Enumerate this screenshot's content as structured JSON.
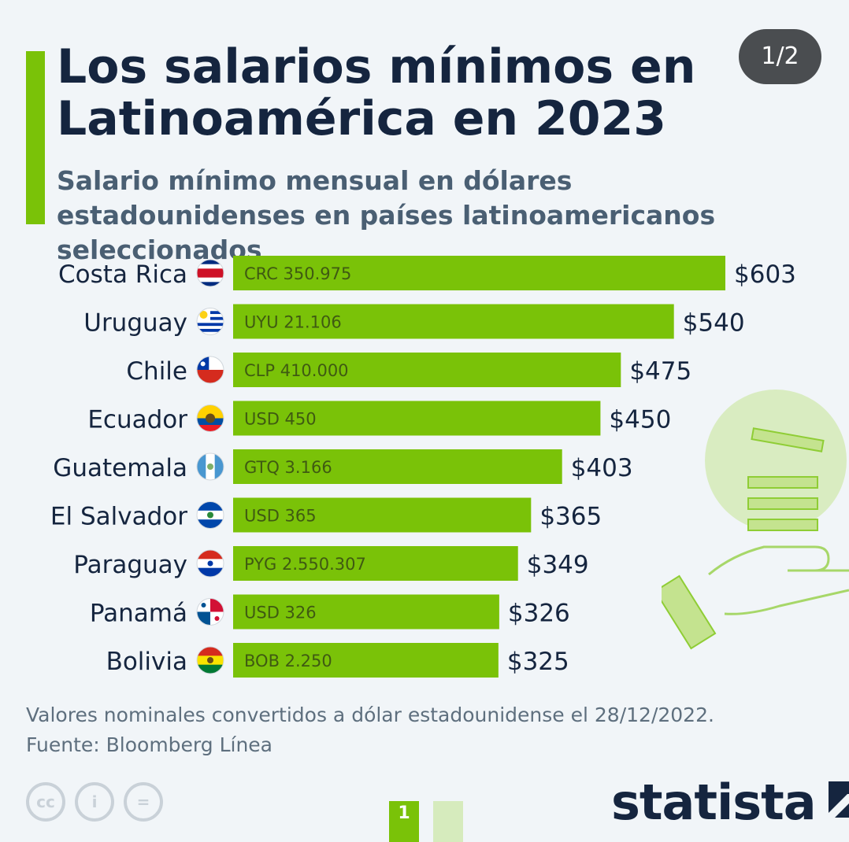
{
  "header": {
    "title": "Los salarios mínimos en Latinoamérica en 2023",
    "subtitle": "Salario mínimo mensual en dólares estadounidenses en países latinoamericanos seleccionados",
    "page_indicator": "1/2"
  },
  "colors": {
    "accent": "#7ac208",
    "text_dark": "#15253f",
    "text_muted": "#5e6f7e",
    "background": "#f1f5f8"
  },
  "chart_data": {
    "type": "bar",
    "orientation": "horizontal",
    "categories": [
      "Costa Rica",
      "Uruguay",
      "Chile",
      "Ecuador",
      "Guatemala",
      "El Salvador",
      "Paraguay",
      "Panamá",
      "Bolivia"
    ],
    "values": [
      603,
      540,
      475,
      450,
      403,
      365,
      349,
      326,
      325
    ],
    "value_labels": [
      "$603",
      "$540",
      "$475",
      "$450",
      "$403",
      "$365",
      "$349",
      "$326",
      "$325"
    ],
    "local_currency_labels": [
      "CRC 350.975",
      "UYU 21.106",
      "CLP 410.000",
      "USD 450",
      "GTQ 3.166",
      "USD 365",
      "PYG 2.550.307",
      "USD 326",
      "BOB 2.250"
    ],
    "flags": [
      "flag-costa-rica-icon",
      "flag-uruguay-icon",
      "flag-chile-icon",
      "flag-ecuador-icon",
      "flag-guatemala-icon",
      "flag-el-salvador-icon",
      "flag-paraguay-icon",
      "flag-panama-icon",
      "flag-bolivia-icon"
    ],
    "bar_color": "#7ac208",
    "xlim": [
      0,
      603
    ]
  },
  "footer": {
    "note": "Valores nominales convertidos a dólar estadounidense el 28/12/2022.",
    "source": "Fuente: Bloomberg Línea",
    "license_icons": [
      "cc-icon",
      "attribution-icon",
      "no-derivatives-icon"
    ],
    "license_glyphs": [
      "cc",
      "i",
      "="
    ],
    "pager": [
      "1",
      ""
    ],
    "logo": "statista"
  }
}
